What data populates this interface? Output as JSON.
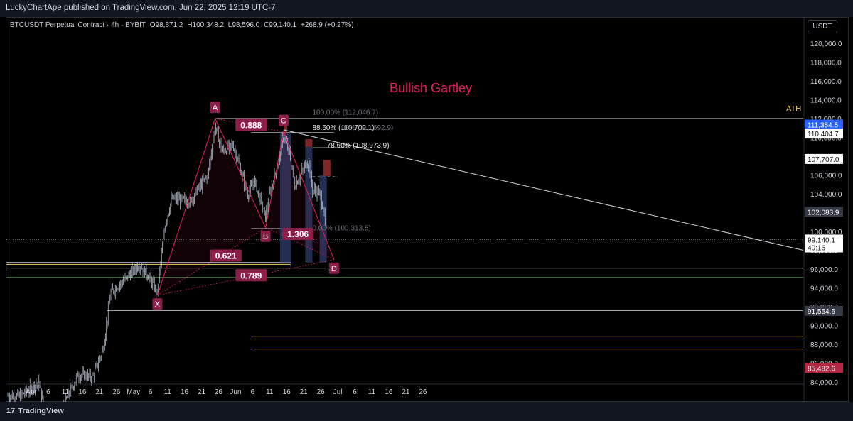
{
  "header": {
    "publisher_line": "LuckyChartApe published on TradingView.com, Jun 22, 2025 12:19 UTC-7"
  },
  "legend": {
    "symbol": "BTCUSDT Perpetual Contract · 4h · BYBIT",
    "open": "O98,871.2",
    "high": "H100,348.2",
    "low": "L98,596.0",
    "close": "C99,140.1",
    "change": "+268.9 (+0.27%)"
  },
  "currency_button": "USDT",
  "footer": {
    "brand": "TradingView",
    "logo_icon": "tradingview-logo-icon"
  },
  "colors": {
    "background": "#000000",
    "candle": "#c8d1e0",
    "pattern": "#e91e63",
    "pattern_label_bg": "#8b1f4a",
    "white_line": "#d1d4dc",
    "yellow_line": "#f0d26a",
    "green_line": "#5aa25a",
    "red_price_label": "#b22843",
    "blue_price_label": "#2962ff",
    "box_blue": "#2f3f6b",
    "box_red": "#8e2a2a"
  },
  "chart_data": {
    "type": "candlestick",
    "title": "Bullish Gartley",
    "y_axis": {
      "min": 84000,
      "max": 121000,
      "ticks": [
        84000,
        86000,
        88000,
        90000,
        92000,
        94000,
        96000,
        98000,
        100000,
        102000,
        104000,
        106000,
        108000,
        110000,
        112000,
        114000,
        116000,
        118000,
        120000
      ],
      "tick_labels": [
        "84,000.0",
        "86,000.0",
        "88,000.0",
        "90,000.0",
        "92,000.0",
        "94,000.0",
        "96,000.0",
        "98,000.0",
        "100,000.0",
        "102,000.0",
        "104,000.0",
        "106,000.0",
        "108,000.0",
        "110,000.0",
        "112,000.0",
        "114,000.0",
        "116,000.0",
        "118,000.0",
        "120,000.0"
      ]
    },
    "x_axis": {
      "tick_labels": [
        "Apr",
        "6",
        "11",
        "16",
        "21",
        "26",
        "May",
        "6",
        "11",
        "16",
        "21",
        "26",
        "Jun",
        "6",
        "11",
        "16",
        "21",
        "26",
        "Jul",
        "6",
        "11",
        "16",
        "21",
        "26"
      ]
    },
    "price_series_approx": [
      {
        "date": "2025-03-29",
        "price": 82500
      },
      {
        "date": "2025-04-03",
        "price": 84000
      },
      {
        "date": "2025-04-07",
        "price": 77500
      },
      {
        "date": "2025-04-10",
        "price": 81500
      },
      {
        "date": "2025-04-14",
        "price": 84800
      },
      {
        "date": "2025-04-18",
        "price": 84500
      },
      {
        "date": "2025-04-21",
        "price": 87500
      },
      {
        "date": "2025-04-23",
        "price": 93500
      },
      {
        "date": "2025-04-26",
        "price": 94500
      },
      {
        "date": "2025-05-01",
        "price": 96500
      },
      {
        "date": "2025-05-04",
        "price": 95000
      },
      {
        "date": "2025-05-06",
        "price": 93400
      },
      {
        "date": "2025-05-08",
        "price": 100500
      },
      {
        "date": "2025-05-10",
        "price": 103500
      },
      {
        "date": "2025-05-15",
        "price": 103200
      },
      {
        "date": "2025-05-20",
        "price": 106000
      },
      {
        "date": "2025-05-22",
        "price": 111200
      },
      {
        "date": "2025-05-24",
        "price": 108500
      },
      {
        "date": "2025-05-27",
        "price": 109200
      },
      {
        "date": "2025-05-31",
        "price": 104000
      },
      {
        "date": "2025-06-02",
        "price": 105300
      },
      {
        "date": "2025-06-05",
        "price": 101500
      },
      {
        "date": "2025-06-06",
        "price": 103800
      },
      {
        "date": "2025-06-09",
        "price": 108000
      },
      {
        "date": "2025-06-10",
        "price": 110300
      },
      {
        "date": "2025-06-12",
        "price": 107800
      },
      {
        "date": "2025-06-13",
        "price": 104800
      },
      {
        "date": "2025-06-16",
        "price": 107000
      },
      {
        "date": "2025-06-17",
        "price": 107500
      },
      {
        "date": "2025-06-18",
        "price": 104500
      },
      {
        "date": "2025-06-20",
        "price": 104000
      },
      {
        "date": "2025-06-21",
        "price": 102500
      },
      {
        "date": "2025-06-22",
        "price": 99140
      }
    ],
    "pattern_points": [
      {
        "label": "X",
        "date": "2025-05-06",
        "price": 93200
      },
      {
        "label": "A",
        "date": "2025-05-22",
        "price": 112000
      },
      {
        "label": "B",
        "date": "2025-06-05",
        "price": 100400
      },
      {
        "label": "C",
        "date": "2025-06-10",
        "price": 110600
      },
      {
        "label": "D",
        "date": "2025-06-24",
        "price": 97000
      }
    ],
    "ratio_labels": [
      {
        "text": "0.888",
        "date": "2025-06-01",
        "price": 111300
      },
      {
        "text": "0.621",
        "date": "2025-05-25",
        "price": 97400
      },
      {
        "text": "0.789",
        "date": "2025-06-01",
        "price": 95300
      },
      {
        "text": "1.306",
        "date": "2025-06-14",
        "price": 99700
      }
    ],
    "fib_labels": [
      {
        "text": "100.00% (112,046.7)",
        "date": "2025-06-18",
        "price": 112700,
        "dim": true
      },
      {
        "text": "88.60% (110,709.1)",
        "date": "2025-06-18",
        "price": 111100,
        "dim": false
      },
      {
        "text": "00% (110,692.9)",
        "date": "2025-06-26",
        "price": 111100,
        "dim": true
      },
      {
        "text": "78.60% (108,973.9)",
        "date": "2025-06-22",
        "price": 109200,
        "dim": false
      },
      {
        "text": "0.00% (100,313.5)",
        "date": "2025-06-18",
        "price": 100400,
        "dim": true
      }
    ],
    "levels": [
      {
        "price": 112000,
        "color": "white",
        "from": "2025-05-22",
        "to": "end"
      },
      {
        "price": 110500,
        "color": "white",
        "from": "2025-06-01",
        "to": "2025-06-24"
      },
      {
        "price": 108900,
        "color": "white",
        "from": "2025-06-18",
        "to": "2025-06-28"
      },
      {
        "price": 100300,
        "color": "white",
        "from": "2025-06-01",
        "to": "2025-06-18"
      },
      {
        "price": 96700,
        "color": "white",
        "from": "start",
        "to": "2025-06-12"
      },
      {
        "price": 96500,
        "color": "yellow",
        "from": "start",
        "to": "2025-06-12"
      },
      {
        "price": 96100,
        "color": "white",
        "from": "start",
        "to": "end"
      },
      {
        "price": 95100,
        "color": "green",
        "from": "start",
        "to": "end"
      },
      {
        "price": 91600,
        "color": "white",
        "from": "2025-04-22",
        "to": "end"
      },
      {
        "price": 88800,
        "color": "yellow",
        "from": "2025-06-01",
        "to": "end"
      },
      {
        "price": 87500,
        "color": "yellow",
        "from": "2025-06-01",
        "to": "end"
      }
    ],
    "trendline": {
      "from": {
        "date": "2025-06-10",
        "price": 110800
      },
      "to": {
        "date": "end",
        "price": 98000
      }
    },
    "boxes": [
      {
        "color": "blue",
        "from": "2025-06-09",
        "to": "2025-06-12",
        "top": 110400,
        "bottom": 96700
      },
      {
        "color": "blue",
        "from": "2025-06-16",
        "to": "2025-06-18",
        "top": 109100,
        "bottom": 96700
      },
      {
        "color": "blue",
        "from": "2025-06-20",
        "to": "2025-06-22",
        "top": 106000,
        "bottom": 96700
      },
      {
        "color": "red",
        "from": "2025-06-10",
        "to": "2025-06-11",
        "top": 111400,
        "bottom": 110500
      },
      {
        "color": "red",
        "from": "2025-06-16",
        "to": "2025-06-18",
        "top": 109800,
        "bottom": 109000
      },
      {
        "color": "red",
        "from": "2025-06-21",
        "to": "2025-06-23",
        "top": 107600,
        "bottom": 105900
      }
    ],
    "dashed_level": {
      "price": 105800,
      "from": "2025-06-18",
      "to": "2025-06-25"
    },
    "current_price_line": {
      "price": 99140
    },
    "annotations": [
      {
        "text": "ATH",
        "price": 112500
      }
    ],
    "price_labels": [
      {
        "text": "111,354.5",
        "price": 111354.5,
        "style": "blue"
      },
      {
        "text": "110,404.7",
        "price": 110404.7,
        "style": "white"
      },
      {
        "text": "107,707.0",
        "price": 107707,
        "style": "white"
      },
      {
        "text": "102,083.9",
        "price": 102083.9,
        "style": "grey"
      },
      {
        "text": "99,140.1",
        "price": 99140.1,
        "style": "white"
      },
      {
        "text": "40:16",
        "price": 98300,
        "style": "white"
      },
      {
        "text": "91,554.6",
        "price": 91554.6,
        "style": "grey"
      },
      {
        "text": "85,482.6",
        "price": 85482.6,
        "style": "red"
      }
    ]
  }
}
